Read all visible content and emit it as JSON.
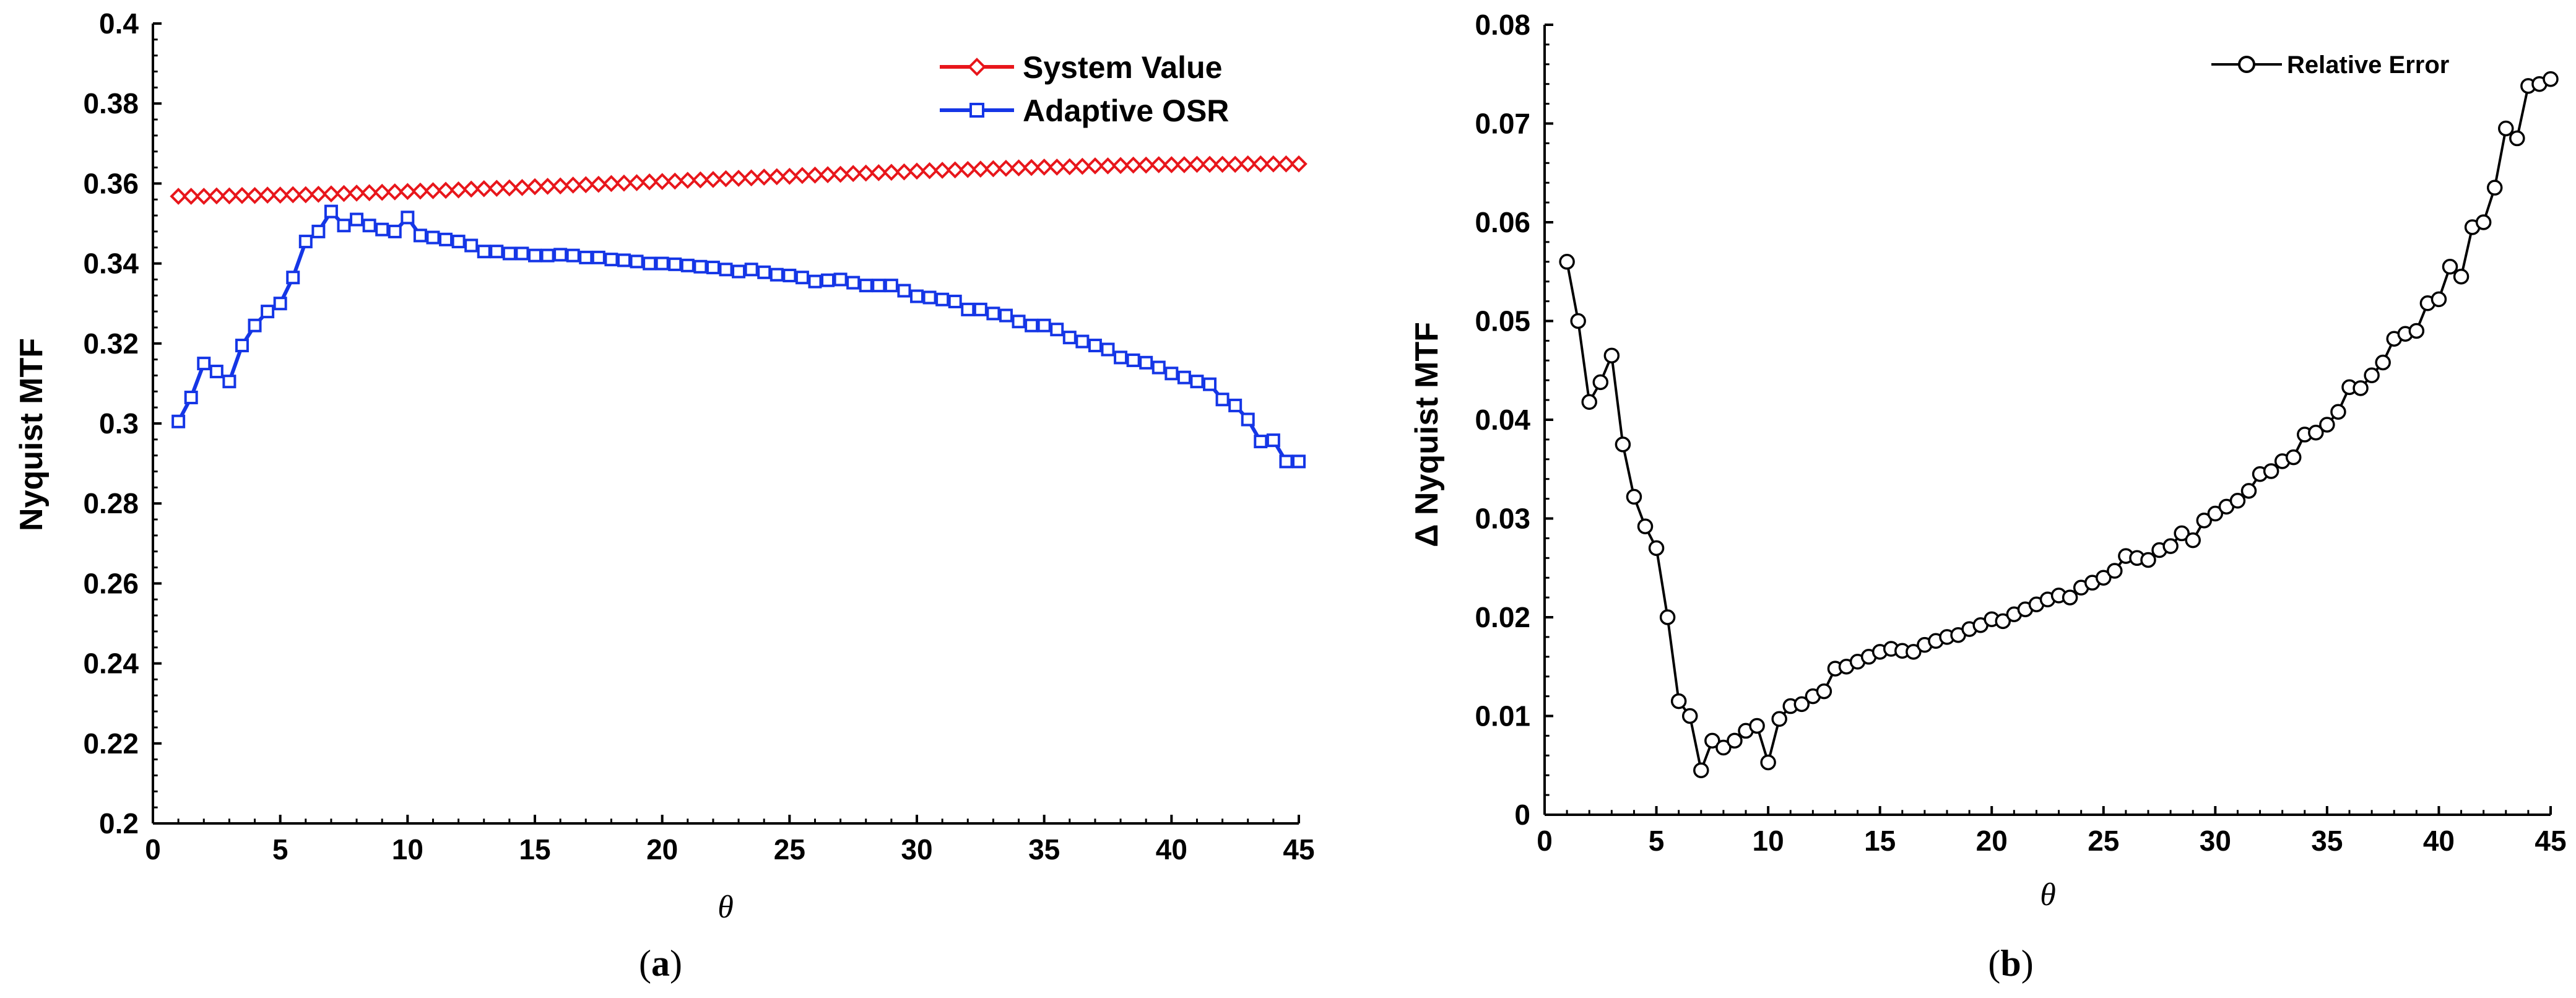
{
  "chart_data": [
    {
      "id": "a",
      "type": "line",
      "caption_letter": "a",
      "title": "",
      "xlabel": "θ",
      "ylabel": "Nyquist MTF",
      "xlim": [
        0,
        45
      ],
      "ylim": [
        0.2,
        0.4
      ],
      "xticks": [
        0,
        5,
        10,
        15,
        20,
        25,
        30,
        35,
        40,
        45
      ],
      "yticks": [
        0.2,
        0.22,
        0.24,
        0.26,
        0.28,
        0.3,
        0.32,
        0.34,
        0.36,
        0.38,
        0.4
      ],
      "ytick_labels": [
        "0.2",
        "0.22",
        "0.24",
        "0.26",
        "0.28",
        "0.3",
        "0.32",
        "0.34",
        "0.36",
        "0.38",
        "0.4"
      ],
      "grid": false,
      "legend": "top-right",
      "x": [
        1,
        1.5,
        2,
        2.5,
        3,
        3.5,
        4,
        4.5,
        5,
        5.5,
        6,
        6.5,
        7,
        7.5,
        8,
        8.5,
        9,
        9.5,
        10,
        10.5,
        11,
        11.5,
        12,
        12.5,
        13,
        13.5,
        14,
        14.5,
        15,
        15.5,
        16,
        16.5,
        17,
        17.5,
        18,
        18.5,
        19,
        19.5,
        20,
        20.5,
        21,
        21.5,
        22,
        22.5,
        23,
        23.5,
        24,
        24.5,
        25,
        25.5,
        26,
        26.5,
        27,
        27.5,
        28,
        28.5,
        29,
        29.5,
        30,
        30.5,
        31,
        31.5,
        32,
        32.5,
        33,
        33.5,
        34,
        34.5,
        35,
        35.5,
        36,
        36.5,
        37,
        37.5,
        38,
        38.5,
        39,
        39.5,
        40,
        40.5,
        41,
        41.5,
        42,
        42.5,
        43,
        43.5,
        44,
        44.5,
        45
      ],
      "series": [
        {
          "name": "System Value",
          "color": "#e8161b",
          "marker": "diamond",
          "values": [
            0.3568,
            0.3568,
            0.3568,
            0.3569,
            0.3569,
            0.357,
            0.357,
            0.3571,
            0.3571,
            0.3572,
            0.3572,
            0.3573,
            0.3574,
            0.3575,
            0.3576,
            0.3577,
            0.3578,
            0.3579,
            0.358,
            0.3581,
            0.3582,
            0.3583,
            0.3584,
            0.3586,
            0.3587,
            0.3588,
            0.3589,
            0.359,
            0.3592,
            0.3593,
            0.3594,
            0.3596,
            0.3597,
            0.3598,
            0.36,
            0.3601,
            0.3602,
            0.3604,
            0.3605,
            0.3606,
            0.3608,
            0.3609,
            0.361,
            0.3612,
            0.3613,
            0.3614,
            0.3616,
            0.3617,
            0.3618,
            0.362,
            0.3621,
            0.3622,
            0.3623,
            0.3625,
            0.3626,
            0.3627,
            0.3628,
            0.3629,
            0.3631,
            0.3632,
            0.3633,
            0.3634,
            0.3635,
            0.3636,
            0.3637,
            0.3638,
            0.3639,
            0.364,
            0.3641,
            0.3641,
            0.3642,
            0.3643,
            0.3644,
            0.3644,
            0.3645,
            0.3646,
            0.3646,
            0.3647,
            0.3647,
            0.3647,
            0.3648,
            0.3648,
            0.3648,
            0.3648,
            0.3649,
            0.3649,
            0.3649,
            0.3649,
            0.3649
          ]
        },
        {
          "name": "Adaptive OSR",
          "color": "#1536e6",
          "marker": "square",
          "values": [
            0.3005,
            0.3065,
            0.315,
            0.313,
            0.3105,
            0.3195,
            0.3245,
            0.328,
            0.33,
            0.3365,
            0.3455,
            0.348,
            0.353,
            0.3495,
            0.351,
            0.3495,
            0.3485,
            0.348,
            0.3515,
            0.347,
            0.3465,
            0.346,
            0.3455,
            0.3445,
            0.343,
            0.343,
            0.3425,
            0.3425,
            0.342,
            0.342,
            0.3422,
            0.342,
            0.3415,
            0.3415,
            0.341,
            0.3408,
            0.3405,
            0.34,
            0.34,
            0.3398,
            0.3395,
            0.3392,
            0.339,
            0.3385,
            0.338,
            0.3385,
            0.3378,
            0.3372,
            0.337,
            0.3365,
            0.3355,
            0.3358,
            0.336,
            0.3352,
            0.3345,
            0.3345,
            0.3345,
            0.3332,
            0.3318,
            0.3315,
            0.331,
            0.3305,
            0.3285,
            0.3285,
            0.3275,
            0.327,
            0.3255,
            0.3245,
            0.3245,
            0.3235,
            0.3215,
            0.3205,
            0.3195,
            0.3185,
            0.3165,
            0.3158,
            0.3152,
            0.314,
            0.3125,
            0.3115,
            0.3105,
            0.3098,
            0.306,
            0.3045,
            0.301,
            0.2955,
            0.2958,
            0.2905,
            0.2905
          ]
        }
      ]
    },
    {
      "id": "b",
      "type": "line",
      "caption_letter": "b",
      "title": "",
      "xlabel": "θ",
      "ylabel": "Δ Nyquist MTF",
      "xlim": [
        0,
        45
      ],
      "ylim": [
        0,
        0.08
      ],
      "xticks": [
        0,
        5,
        10,
        15,
        20,
        25,
        30,
        35,
        40,
        45
      ],
      "yticks": [
        0,
        0.01,
        0.02,
        0.03,
        0.04,
        0.05,
        0.06,
        0.07,
        0.08
      ],
      "ytick_labels": [
        "0",
        "0.01",
        "0.02",
        "0.03",
        "0.04",
        "0.05",
        "0.06",
        "0.07",
        "0.08"
      ],
      "grid": false,
      "legend": "top-right",
      "x": [
        1,
        1.5,
        2,
        2.5,
        3,
        3.5,
        4,
        4.5,
        5,
        5.5,
        6,
        6.5,
        7,
        7.5,
        8,
        8.5,
        9,
        9.5,
        10,
        10.5,
        11,
        11.5,
        12,
        12.5,
        13,
        13.5,
        14,
        14.5,
        15,
        15.5,
        16,
        16.5,
        17,
        17.5,
        18,
        18.5,
        19,
        19.5,
        20,
        20.5,
        21,
        21.5,
        22,
        22.5,
        23,
        23.5,
        24,
        24.5,
        25,
        25.5,
        26,
        26.5,
        27,
        27.5,
        28,
        28.5,
        29,
        29.5,
        30,
        30.5,
        31,
        31.5,
        32,
        32.5,
        33,
        33.5,
        34,
        34.5,
        35,
        35.5,
        36,
        36.5,
        37,
        37.5,
        38,
        38.5,
        39,
        39.5,
        40,
        40.5,
        41,
        41.5,
        42,
        42.5,
        43,
        43.5,
        44,
        44.5,
        45
      ],
      "series": [
        {
          "name": "Relative Error",
          "color": "#000000",
          "marker": "circle",
          "values": [
            0.056,
            0.05,
            0.0418,
            0.0438,
            0.0465,
            0.0375,
            0.0322,
            0.0292,
            0.027,
            0.02,
            0.0115,
            0.01,
            0.0045,
            0.0075,
            0.0068,
            0.0075,
            0.0085,
            0.009,
            0.0053,
            0.0097,
            0.011,
            0.0112,
            0.012,
            0.0125,
            0.0148,
            0.015,
            0.0155,
            0.016,
            0.0165,
            0.0168,
            0.0166,
            0.0165,
            0.0172,
            0.0176,
            0.018,
            0.0182,
            0.0188,
            0.0192,
            0.0198,
            0.0196,
            0.0203,
            0.0208,
            0.0213,
            0.0218,
            0.0222,
            0.022,
            0.023,
            0.0235,
            0.024,
            0.0247,
            0.0262,
            0.026,
            0.0258,
            0.0268,
            0.0272,
            0.0285,
            0.0278,
            0.0298,
            0.0305,
            0.0312,
            0.0318,
            0.0328,
            0.0345,
            0.0348,
            0.0358,
            0.0362,
            0.0385,
            0.0387,
            0.0395,
            0.0408,
            0.0433,
            0.0432,
            0.0445,
            0.0458,
            0.0482,
            0.0487,
            0.049,
            0.0518,
            0.0522,
            0.0555,
            0.0545,
            0.0595,
            0.06,
            0.0635,
            0.0695,
            0.0685,
            0.0738,
            0.074,
            0.0745
          ]
        }
      ]
    }
  ]
}
